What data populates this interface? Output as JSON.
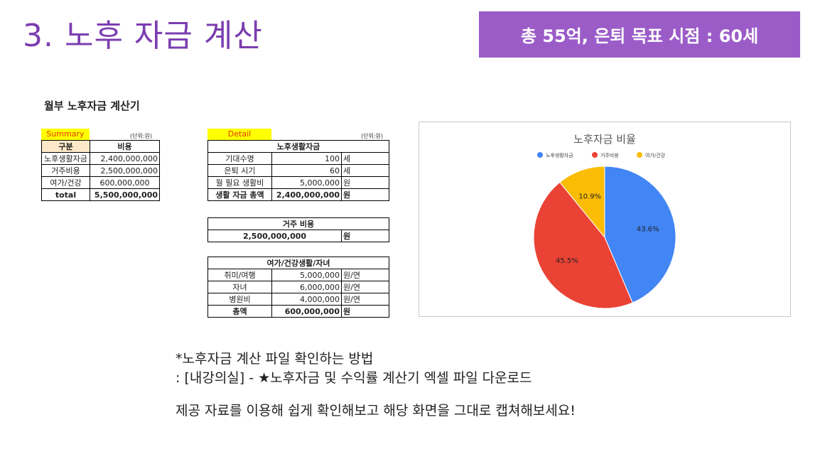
{
  "slide": {
    "title": "3. 노후 자금 계산",
    "banner": "총 55억, 은퇴 목표 시점 : 60세"
  },
  "sheet": {
    "title": "월부 노후자금 계산기",
    "summary": {
      "tag": "Summary",
      "unit": "(단위:원)",
      "headers": [
        "구분",
        "비용"
      ],
      "rows": [
        {
          "label": "노후생활자금",
          "value": "2,400,000,000"
        },
        {
          "label": "거주비용",
          "value": "2,500,000,000"
        },
        {
          "label": "여가/건강",
          "value": "600,000,000"
        }
      ],
      "total": {
        "label": "total",
        "value": "5,500,000,000"
      }
    },
    "detail": {
      "tag": "Detail",
      "unit": "(단위:원)",
      "living": {
        "header": "노후생활자금",
        "rows": [
          {
            "label": "기대수명",
            "value": "100",
            "unit": "세"
          },
          {
            "label": "은퇴 시기",
            "value": "60",
            "unit": "세"
          },
          {
            "label": "월 필요 생활비",
            "value": "5,000,000",
            "unit": "원"
          },
          {
            "label": "생활 자금 총액",
            "value": "2,400,000,000",
            "unit": "원"
          }
        ]
      },
      "housing": {
        "header": "거주 비용",
        "value": "2,500,000,000",
        "unit": "원"
      },
      "leisure": {
        "header": "여가/건강생활/자녀",
        "rows": [
          {
            "label": "취미/여행",
            "value": "5,000,000",
            "unit": "원/연"
          },
          {
            "label": "자녀",
            "value": "6,000,000",
            "unit": "원/연"
          },
          {
            "label": "병원비",
            "value": "4,000,000",
            "unit": "원/연"
          },
          {
            "label": "총액",
            "value": "600,000,000",
            "unit": "원"
          }
        ]
      }
    }
  },
  "chart_data": {
    "type": "pie",
    "title": "노후자금 비율",
    "legend_position": "top",
    "categories": [
      "노후생활자금",
      "거주비용",
      "여가/건강"
    ],
    "values": [
      43.6,
      45.5,
      10.9
    ],
    "labels": [
      "43.6%",
      "45.5%",
      "10.9%"
    ],
    "colors": [
      "#4285f4",
      "#ea4335",
      "#fbbc04"
    ]
  },
  "notes": {
    "line1": "*노후자금 계산 파일 확인하는 방법",
    "line2": ": [내강의실] - ★노후자금 및 수익률 계산기 엑셀 파일 다운로드",
    "line3": "제공 자료를 이용해 쉽게 확인해보고 해당 화면을 그대로 캡쳐해보세요!"
  }
}
